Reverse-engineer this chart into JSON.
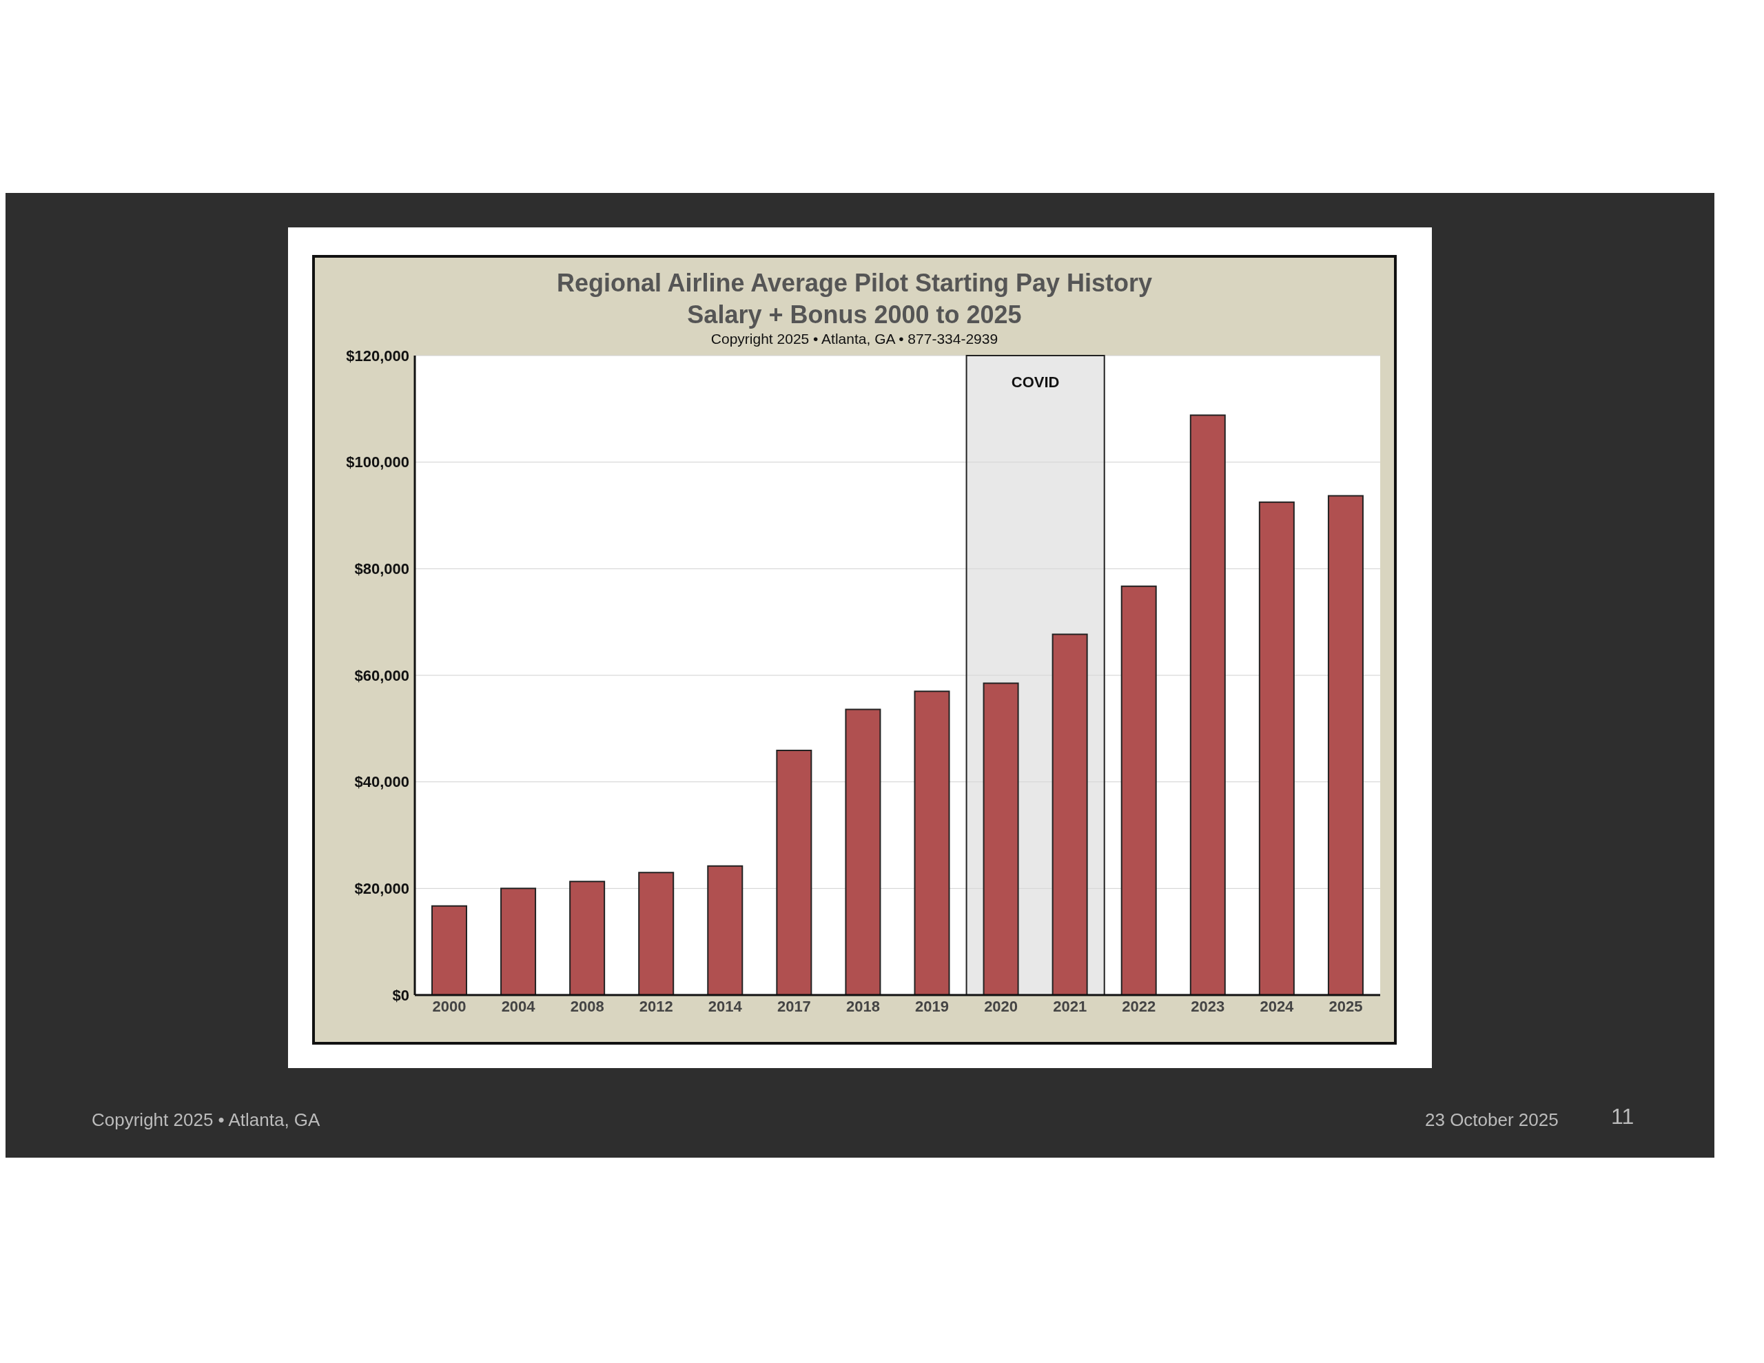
{
  "chart_data": {
    "type": "bar",
    "title": "Regional Airline Average Pilot Starting Pay History",
    "subtitle": "Salary + Bonus 2000 to 2025",
    "annotations": [
      "Copyright 2025 • Atlanta, GA • 877-334-2939",
      "Copyright 2025 • Atlanta, GA",
      "23 October 2025",
      "11"
    ],
    "categories": [
      "2000",
      "2004",
      "2008",
      "2012",
      "2014",
      "2017",
      "2018",
      "2019",
      "2020",
      "2021",
      "2022",
      "2023",
      "2024",
      "2025"
    ],
    "values": [
      16700,
      20000,
      21300,
      23000,
      24200,
      45900,
      53600,
      57000,
      58500,
      67700,
      76700,
      108800,
      92500,
      93700
    ],
    "color": "#b05050",
    "ylim": [
      0,
      120000
    ],
    "yticks": [
      {
        "value": 0,
        "label": "$0"
      },
      {
        "value": 20000,
        "label": "$20,000"
      },
      {
        "value": 40000,
        "label": "$40,000"
      },
      {
        "value": 60000,
        "label": "$60,000"
      },
      {
        "value": 80000,
        "label": "$80,000"
      },
      {
        "value": 100000,
        "label": "$100,000"
      },
      {
        "value": 120000,
        "label": "$120,000"
      }
    ],
    "grid": "y",
    "bands": [
      {
        "axis": "x",
        "from": "2020",
        "to": "2021",
        "label": "COVID",
        "color": "#d9d9d9"
      }
    ]
  }
}
